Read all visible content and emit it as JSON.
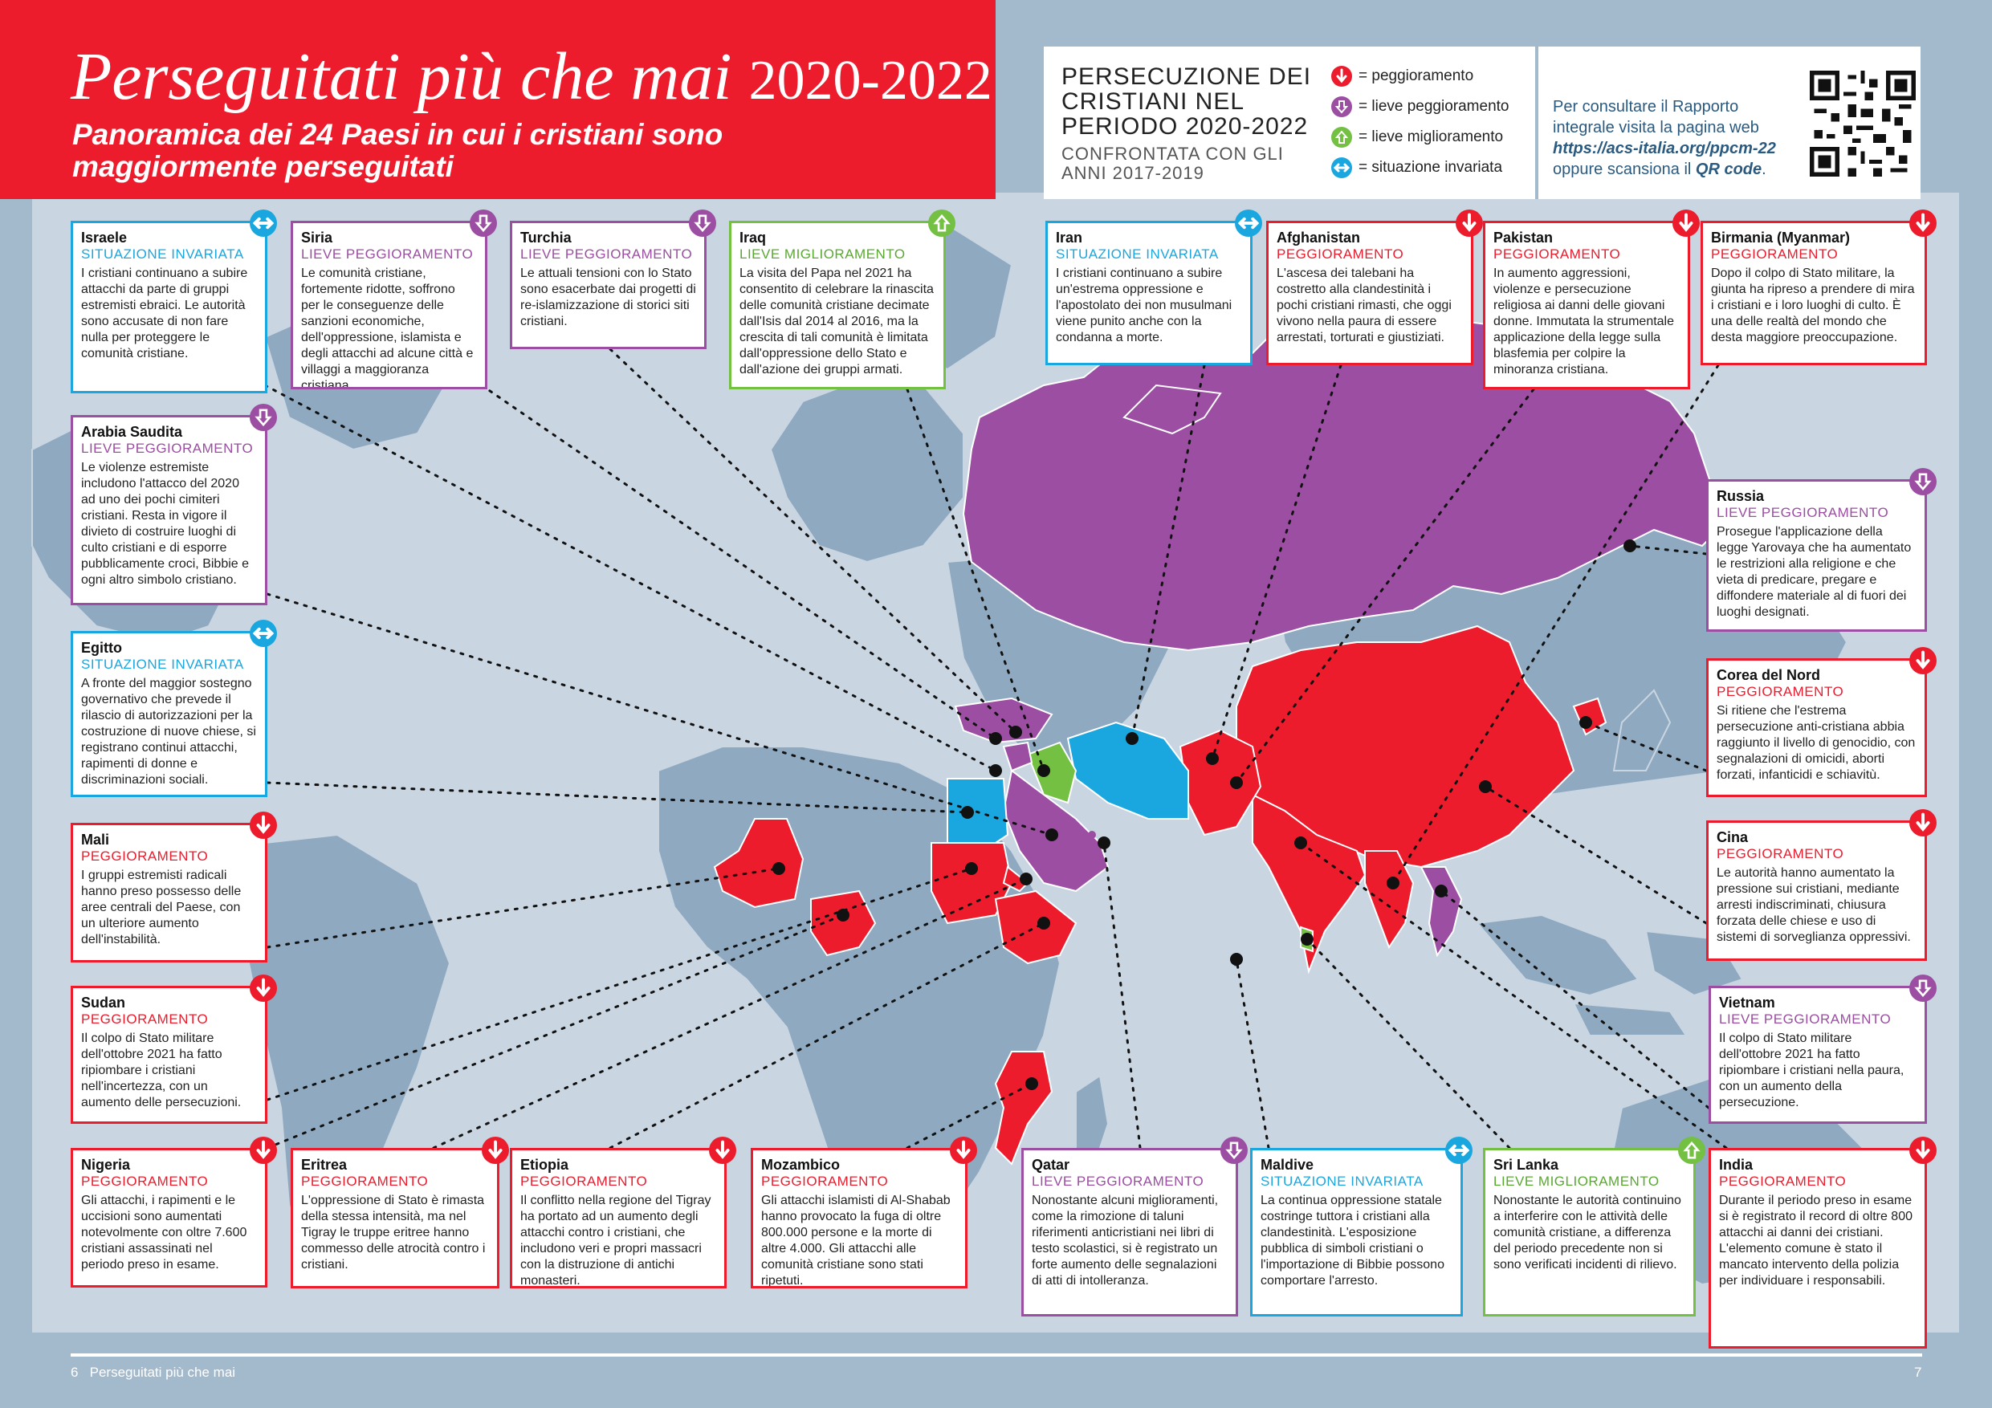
{
  "header": {
    "title": "Perseguitati più che mai",
    "title_years": "2020-2022",
    "subtitle": "Panoramica dei 24 Paesi in cui i cristiani sono maggiormente perseguitati"
  },
  "legend": {
    "title": "PERSECUZIONE DEI CRISTIANI NEL PERIODO 2020-2022",
    "subtitle": "CONFRONTATA CON GLI ANNI 2017-2019",
    "items": [
      {
        "icon": "arrow-down-icon",
        "color": "#ec1c2d",
        "label": "= peggioramento"
      },
      {
        "icon": "arrow-down-outline-icon",
        "color": "#9b4ea2",
        "label": "= lieve peggioramento"
      },
      {
        "icon": "arrow-up-outline-icon",
        "color": "#73c043",
        "label": "= lieve miglioramento"
      },
      {
        "icon": "arrow-both-icon",
        "color": "#1aa7e0",
        "label": "= situazione invariata"
      }
    ],
    "info_prefix": "Per consultare il Rapporto integrale visita la pagina web",
    "info_url": "https://acs-italia.org/ppcm-22",
    "info_suffix": "oppure scansiona il",
    "info_qr": "QR code",
    "info_end": "."
  },
  "colors": {
    "worse": "#ec1c2d",
    "slight": "#9b4ea2",
    "better": "#73c043",
    "same": "#1aa7e0",
    "land": "#7f9bb3",
    "ocean": "#a3b9cc"
  },
  "countries": [
    {
      "id": "israele",
      "name": "Israele",
      "status_key": "same",
      "status": "SITUAZIONE INVARIATA",
      "text": "I cristiani continuano a subire attacchi da parte di gruppi estremisti ebraici. Le autorità sono accusate di non fare nulla per proteggere le comunità cristiane."
    },
    {
      "id": "siria",
      "name": "Siria",
      "status_key": "slight",
      "status": "LIEVE PEGGIORAMENTO",
      "text": "Le comunità cristiane, fortemente ridotte, soffrono per le conseguenze delle sanzioni economiche, dell'oppressione, islamista e degli attacchi ad alcune città e villaggi a maggioranza cristiana."
    },
    {
      "id": "turchia",
      "name": "Turchia",
      "status_key": "slight",
      "status": "LIEVE PEGGIORAMENTO",
      "text": "Le attuali tensioni con lo Stato sono esacerbate dai progetti di re-islamizzazione di storici siti cristiani."
    },
    {
      "id": "iraq",
      "name": "Iraq",
      "status_key": "better",
      "status": "LIEVE MIGLIORAMENTO",
      "text": "La visita del Papa nel 2021 ha consentito di celebrare la rinascita delle comunità cristiane decimate dall'Isis dal 2014 al 2016, ma la crescita di tali comunità è limitata dall'oppressione dello Stato e dall'azione dei gruppi armati."
    },
    {
      "id": "iran",
      "name": "Iran",
      "status_key": "same",
      "status": "SITUAZIONE INVARIATA",
      "text": "I cristiani continuano a subire un'estrema oppressione e l'apostolato dei non musulmani viene punito anche con la condanna a morte."
    },
    {
      "id": "afghanistan",
      "name": "Afghanistan",
      "status_key": "worse",
      "status": "PEGGIORAMENTO",
      "text": "L'ascesa dei talebani ha costretto alla clandestinità i pochi cristiani rimasti, che oggi vivono nella paura di essere arrestati, torturati e giustiziati."
    },
    {
      "id": "pakistan",
      "name": "Pakistan",
      "status_key": "worse",
      "status": "PEGGIORAMENTO",
      "text": "In aumento aggressioni, violenze e persecuzione religiosa ai danni delle giovani donne. Immutata la strumentale applicazione della legge sulla blasfemia per colpire la minoranza cristiana."
    },
    {
      "id": "birmania",
      "name": "Birmania (Myanmar)",
      "status_key": "worse",
      "status": "PEGGIORAMENTO",
      "text": "Dopo il colpo di Stato militare, la giunta ha ripreso a prendere di mira i cristiani e i loro luoghi di culto. È una delle realtà del mondo che desta maggiore preoccupazione."
    },
    {
      "id": "arabia",
      "name": "Arabia Saudita",
      "status_key": "slight",
      "status": "LIEVE PEGGIORAMENTO",
      "text": "Le violenze estremiste includono l'attacco del 2020 ad uno dei pochi cimiteri cristiani. Resta in vigore il divieto di costruire luoghi di culto cristiani e di esporre pubblicamente croci, Bibbie e ogni altro simbolo cristiano."
    },
    {
      "id": "russia",
      "name": "Russia",
      "status_key": "slight",
      "status": "LIEVE PEGGIORAMENTO",
      "text": "Prosegue l'applicazione della legge Yarovaya che ha aumentato le restrizioni alla religione e che vieta di predicare, pregare e diffondere materiale al di fuori dei luoghi designati."
    },
    {
      "id": "egitto",
      "name": "Egitto",
      "status_key": "same",
      "status": "SITUAZIONE INVARIATA",
      "text": "A fronte del maggior sostegno governativo che prevede il rilascio di autorizzazioni per la costruzione di nuove chiese, si registrano continui attacchi, rapimenti di donne e discriminazioni sociali."
    },
    {
      "id": "corea",
      "name": "Corea del Nord",
      "status_key": "worse",
      "status": "PEGGIORAMENTO",
      "text": "Si ritiene che l'estrema persecuzione anti-cristiana abbia raggiunto il livello di genocidio, con segnalazioni di omicidi, aborti forzati, infanticidi e schiavitù."
    },
    {
      "id": "mali",
      "name": "Mali",
      "status_key": "worse",
      "status": "PEGGIORAMENTO",
      "text": "I gruppi estremisti radicali hanno preso possesso delle aree centrali del Paese, con un ulteriore aumento dell'instabilità."
    },
    {
      "id": "cina",
      "name": "Cina",
      "status_key": "worse",
      "status": "PEGGIORAMENTO",
      "text": "Le autorità hanno aumentato la pressione sui cristiani, mediante arresti indiscriminati, chiusura forzata delle chiese e uso di sistemi di sorveglianza oppressivi."
    },
    {
      "id": "sudan",
      "name": "Sudan",
      "status_key": "worse",
      "status": "PEGGIORAMENTO",
      "text": "Il colpo di Stato militare dell'ottobre 2021 ha fatto ripiombare i cristiani nell'incertezza, con un aumento delle persecuzioni."
    },
    {
      "id": "vietnam",
      "name": "Vietnam",
      "status_key": "slight",
      "status": "LIEVE PEGGIORAMENTO",
      "text": "Il colpo di Stato militare dell'ottobre 2021 ha fatto ripiombare i cristiani nella paura, con un aumento della persecuzione."
    },
    {
      "id": "nigeria",
      "name": "Nigeria",
      "status_key": "worse",
      "status": "PEGGIORAMENTO",
      "text": "Gli attacchi, i rapimenti e le uccisioni sono aumentati notevolmente con oltre 7.600 cristiani assassinati nel periodo preso in esame."
    },
    {
      "id": "eritrea",
      "name": "Eritrea",
      "status_key": "worse",
      "status": "PEGGIORAMENTO",
      "text": "L'oppressione di Stato è rimasta della stessa intensità, ma nel Tigray le truppe eritree hanno commesso delle atrocità contro i cristiani."
    },
    {
      "id": "etiopia",
      "name": "Etiopia",
      "status_key": "worse",
      "status": "PEGGIORAMENTO",
      "text": "Il conflitto nella regione del Tigray ha portato ad un aumento degli attacchi contro i cristiani, che includono veri e propri massacri con la distruzione di antichi monasteri."
    },
    {
      "id": "mozambico",
      "name": "Mozambico",
      "status_key": "worse",
      "status": "PEGGIORAMENTO",
      "text": "Gli attacchi islamisti di Al-Shabab hanno provocato la fuga di oltre 800.000 persone e la morte di altre 4.000. Gli attacchi alle comunità cristiane sono stati ripetuti."
    },
    {
      "id": "qatar",
      "name": "Qatar",
      "status_key": "slight",
      "status": "LIEVE PEGGIORAMENTO",
      "text": "Nonostante alcuni miglioramenti, come la rimozione di taluni riferimenti anticristiani nei libri di testo scolastici, si è registrato un forte aumento delle segnalazioni di atti di intolleranza."
    },
    {
      "id": "maldive",
      "name": "Maldive",
      "status_key": "same",
      "status": "SITUAZIONE INVARIATA",
      "text": "La continua oppressione statale costringe tuttora i cristiani alla clandestinità. L'esposizione pubblica di simboli cristiani o l'importazione di Bibbie possono comportare l'arresto."
    },
    {
      "id": "srilanka",
      "name": "Sri Lanka",
      "status_key": "better",
      "status": "LIEVE MIGLIORAMENTO",
      "text": "Nonostante le autorità continuino a interferire con le attività delle comunità cristiane, a differenza del periodo precedente non si sono verificati incidenti di rilievo."
    },
    {
      "id": "india",
      "name": "India",
      "status_key": "worse",
      "status": "PEGGIORAMENTO",
      "text": "Durante il periodo preso in esame si è registrato il record di oltre 800 attacchi ai danni dei cristiani. L'elemento comune è stato il mancato intervento della polizia per individuare i responsabili."
    }
  ],
  "footer": {
    "left_page": "6",
    "left_title": "Perseguitati più che mai",
    "right_page": "7"
  }
}
